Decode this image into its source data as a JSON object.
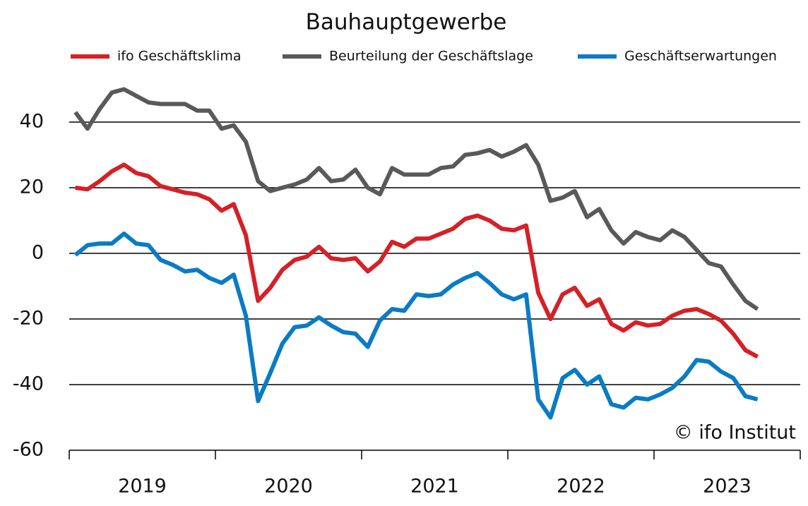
{
  "chart_data": {
    "type": "line",
    "title": "Bauhauptgewerbe",
    "source": "© ifo Institut",
    "x": [
      2019.042,
      2019.125,
      2019.208,
      2019.292,
      2019.375,
      2019.458,
      2019.542,
      2019.625,
      2019.708,
      2019.792,
      2019.875,
      2019.958,
      2020.042,
      2020.125,
      2020.208,
      2020.292,
      2020.375,
      2020.458,
      2020.542,
      2020.625,
      2020.708,
      2020.792,
      2020.875,
      2020.958,
      2021.042,
      2021.125,
      2021.208,
      2021.292,
      2021.375,
      2021.458,
      2021.542,
      2021.625,
      2021.708,
      2021.792,
      2021.875,
      2021.958,
      2022.042,
      2022.125,
      2022.208,
      2022.292,
      2022.375,
      2022.458,
      2022.542,
      2022.625,
      2022.708,
      2022.792,
      2022.875,
      2022.958,
      2023.042,
      2023.125,
      2023.208,
      2023.292,
      2023.375,
      2023.458,
      2023.542,
      2023.625,
      2023.708
    ],
    "series": [
      {
        "name": "ifo Geschäftsklima",
        "color": "#d42127",
        "values": [
          20,
          19.5,
          22,
          25,
          27,
          24.5,
          23.5,
          20.5,
          19.5,
          18.5,
          18,
          16.5,
          13,
          15,
          5.5,
          -14.5,
          -10.5,
          -5,
          -2,
          -1,
          2,
          -1.5,
          -2,
          -1.5,
          -5.5,
          -2.5,
          3.5,
          2,
          4.5,
          4.5,
          6,
          7.5,
          10.5,
          11.5,
          10,
          7.5,
          7,
          8.5,
          -12,
          -20,
          -12.5,
          -10.5,
          -16,
          -14,
          -21.5,
          -23.5,
          -21,
          -22,
          -21.5,
          -19,
          -17.5,
          -17,
          -18.5,
          -20.5,
          -24.5,
          -29.5,
          -31.5
        ]
      },
      {
        "name": "Beurteilung der Geschäftslage",
        "color": "#595959",
        "values": [
          43,
          38,
          44,
          49,
          50,
          48,
          46,
          45.5,
          45.5,
          45.5,
          43.5,
          43.5,
          38,
          39,
          34,
          22,
          19,
          20,
          21,
          22.5,
          26,
          22,
          22.5,
          25.5,
          20,
          18,
          26,
          24,
          24,
          24,
          26,
          26.5,
          30,
          30.5,
          31.5,
          29.5,
          31,
          33,
          27,
          16,
          17,
          19,
          11,
          13.5,
          7,
          3,
          6.5,
          5,
          4,
          7,
          5,
          1,
          -3,
          -4,
          -9.5,
          -14.5,
          -17
        ]
      },
      {
        "name": "Geschäftserwartungen",
        "color": "#0a7bc4",
        "values": [
          -0.5,
          2.5,
          3,
          3,
          6,
          3,
          2.5,
          -2,
          -3.5,
          -5.5,
          -5,
          -7.5,
          -9,
          -6.5,
          -19,
          -45,
          -36.5,
          -27.5,
          -22.5,
          -22,
          -19.5,
          -22,
          -24,
          -24.5,
          -28.5,
          -20.5,
          -17,
          -17.5,
          -12.5,
          -13,
          -12.5,
          -9.5,
          -7.5,
          -6,
          -9,
          -12.5,
          -14,
          -12.5,
          -44.5,
          -50,
          -38,
          -35.5,
          -40,
          -37.5,
          -46,
          -47,
          -44,
          -44.5,
          -43,
          -41,
          -37.5,
          -32.5,
          -33,
          -36,
          -38,
          -43.5,
          -44.5
        ]
      }
    ],
    "xlim": [
      2019,
      2024
    ],
    "xticks": [
      2019,
      2020,
      2021,
      2022,
      2023
    ],
    "ylim": [
      -60,
      50
    ],
    "yticks": [
      -60,
      -40,
      -20,
      0,
      20,
      40
    ],
    "grid": true,
    "legend": "top"
  }
}
